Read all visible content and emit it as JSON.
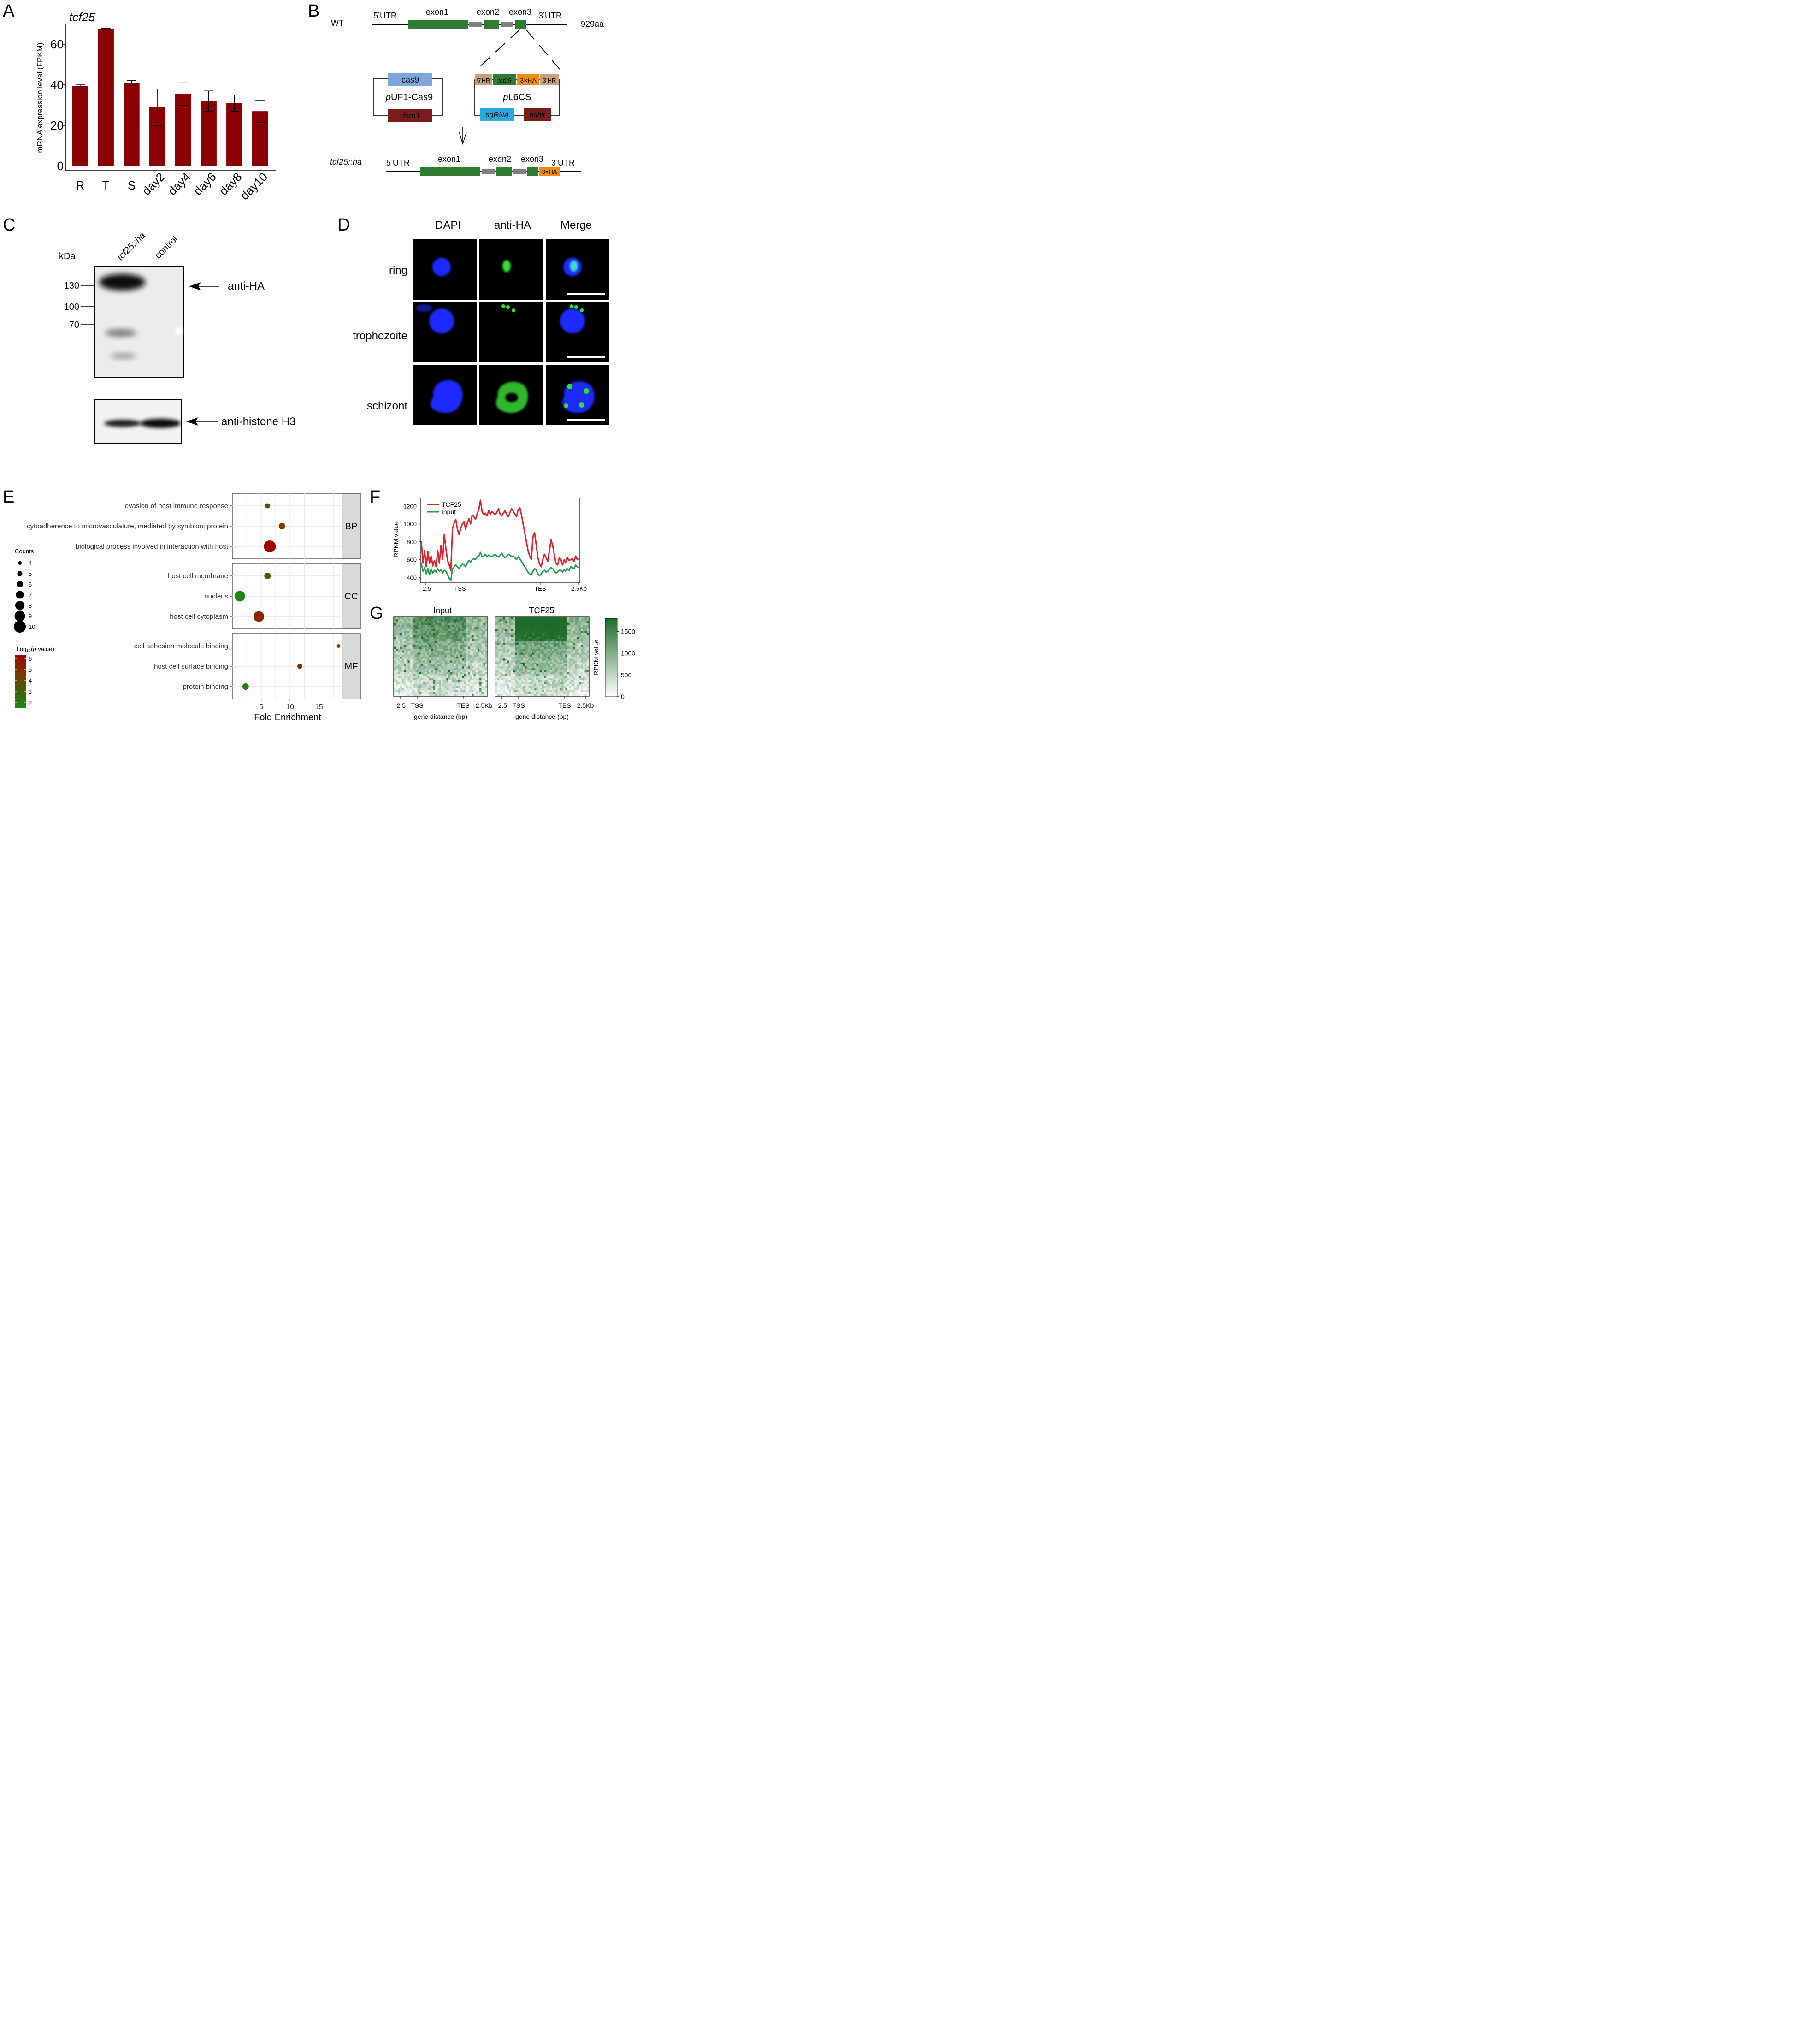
{
  "panels": {
    "A": {
      "letter": "A",
      "title": "tcf25",
      "ylabel": "mRNA expression level (FPKM)"
    },
    "B": {
      "letter": "B",
      "wt_label": "WT",
      "aa_label": "929aa",
      "utr5": "5’UTR",
      "utr3": "3’UTR",
      "exon1": "exon1",
      "exon2": "exon2",
      "exon3": "exon3",
      "cas9": "cas9",
      "dsm1": "dsm1",
      "pUF1_italic": "p",
      "pUF1_rest": "UF1-Cas9",
      "hr5": "5’HR",
      "tcf25_box": "tcf25",
      "ha_box": "3×HA",
      "hr3": "3’HR",
      "pL6CS_italic": "p",
      "pL6CS_rest": "L6CS",
      "sgrna": "sgRNA",
      "hdhfr": "hdhfr",
      "ko_label": "tcf25::ha",
      "ha_small": "3×HA"
    },
    "C": {
      "letter": "C",
      "kda": "kDa",
      "lane1": "tcf25::ha",
      "lane2": "control",
      "marker_130": "130",
      "marker_100": "100",
      "marker_70": "70",
      "anti_ha": "anti-HA",
      "anti_h3": "anti-histone H3"
    },
    "D": {
      "letter": "D",
      "col1": "DAPI",
      "col2": "anti-HA",
      "col3": "Merge",
      "row1": "ring",
      "row2": "trophozoite",
      "row3": "schizont"
    },
    "E": {
      "letter": "E",
      "counts_title": "Counts",
      "counts": [
        "4",
        "5",
        "6",
        "7",
        "8",
        "9",
        "10"
      ],
      "pval_title_prefix": "−Log₁₀(",
      "pval_title_italic": "p",
      "pval_title_suffix": " value)",
      "pval_ticks": [
        "6",
        "5",
        "4",
        "3",
        "2"
      ],
      "xlabel": "Fold Enrichment",
      "xticks": [
        "5",
        "10",
        "15"
      ],
      "facets": [
        "BP",
        "CC",
        "MF"
      ]
    },
    "F": {
      "letter": "F",
      "ylabel": "RPKM value",
      "legend_tcf25": "TCF25",
      "legend_input": "Input",
      "xticks": [
        "-2.5",
        "TSS",
        "TES",
        "2.5Kb"
      ],
      "yticks": [
        "1200",
        "1000",
        "800",
        "600",
        "400"
      ]
    },
    "G": {
      "letter": "G",
      "title_input": "Input",
      "title_tcf25": "TCF25",
      "xticks": [
        "-2.5",
        "TSS",
        "TES",
        "2.5Kb"
      ],
      "xlabel": "gene distance (bp)",
      "colorbar_label": "RPKM value",
      "colorbar_ticks": [
        "1500",
        "1000",
        "500",
        "0"
      ]
    }
  },
  "colors": {
    "bar": "#8b0000",
    "exon": "#2e7d32",
    "intron": "#808080",
    "cas9": "#7ea6dc",
    "dsm1": "#7b1c1c",
    "hr": "#c9a27a",
    "ha": "#f28c0f",
    "sgrna": "#29a9e0",
    "tcf25_line": "#e0202a",
    "input_line": "#20a04a",
    "heat_dark": "#1e6b2a"
  },
  "chart_data": [
    {
      "type": "bar",
      "panel": "A",
      "title": "tcf25",
      "xlabel": "",
      "ylabel": "mRNA expression level (FPKM)",
      "categories": [
        "R",
        "T",
        "S",
        "day2",
        "day4",
        "day6",
        "day8",
        "day10"
      ],
      "values": [
        39.5,
        67.5,
        41,
        29,
        35.5,
        32,
        31,
        27
      ],
      "errors": [
        0.5,
        0.3,
        1.2,
        9,
        5.5,
        5,
        4,
        5.5
      ],
      "ylim": [
        0,
        70
      ],
      "yticks": [
        0,
        20,
        40,
        60
      ],
      "grid": false
    },
    {
      "type": "scatter",
      "panel": "E",
      "xlabel": "Fold Enrichment",
      "xlim": [
        0,
        19
      ],
      "xticks": [
        5,
        10,
        15
      ],
      "grid": true,
      "facets": [
        {
          "name": "BP",
          "terms": [
            {
              "label": "evasion of host immune response",
              "x": 6.1,
              "count": 5,
              "neglog10p": 3.5
            },
            {
              "label": "cytoadherence to microvasculature, mediated by symbiont protein",
              "x": 8.6,
              "count": 6,
              "neglog10p": 4.5
            },
            {
              "label": "biological process involved in interaction with host",
              "x": 6.5,
              "count": 10,
              "neglog10p": 6.3
            }
          ]
        },
        {
          "name": "CC",
          "terms": [
            {
              "label": "host cell membrane",
              "x": 6.1,
              "count": 6,
              "neglog10p": 3.5
            },
            {
              "label": "nucleus",
              "x": 1.3,
              "count": 9,
              "neglog10p": 1.5
            },
            {
              "label": "host cell cytoplasm",
              "x": 4.6,
              "count": 9,
              "neglog10p": 5.2
            }
          ]
        },
        {
          "name": "MF",
          "terms": [
            {
              "label": "cell adhesion molecule binding",
              "x": 18.4,
              "count": 4,
              "neglog10p": 4.5
            },
            {
              "label": "host cell surface binding",
              "x": 11.7,
              "count": 5,
              "neglog10p": 4.8
            },
            {
              "label": "protein binding",
              "x": 2.3,
              "count": 6,
              "neglog10p": 1.8
            }
          ]
        }
      ]
    },
    {
      "type": "line",
      "panel": "F",
      "ylabel": "RPKM value",
      "ylim": [
        350,
        1280
      ],
      "yticks": [
        400,
        600,
        800,
        1000,
        1200
      ],
      "xticks": [
        "-2.5",
        "TSS",
        "TES",
        "2.5Kb"
      ],
      "legend": "top-left",
      "series": [
        {
          "name": "TCF25",
          "values": [
            810,
            560,
            700,
            520,
            690,
            560,
            640,
            530,
            590,
            520,
            700,
            560,
            760,
            600,
            880,
            720,
            590,
            540,
            480,
            950,
            1010,
            1050,
            940,
            880,
            950,
            1000,
            1020,
            940,
            1010,
            1060,
            1000,
            1100,
            1080,
            1050,
            1110,
            1160,
            1265,
            1140,
            1100,
            1120,
            1090,
            1150,
            1110,
            1140,
            1120,
            1100,
            1130,
            1170,
            1110,
            1090,
            1120,
            1150,
            1100,
            1080,
            1130,
            1170,
            1140,
            1110,
            1080,
            1160,
            1180,
            1100,
            1000,
            900,
            800,
            700,
            640,
            600,
            860,
            900,
            760,
            620,
            550,
            520,
            600,
            660,
            620,
            580,
            700,
            820,
            760,
            650,
            560,
            540,
            620,
            600,
            540,
            600,
            560,
            620,
            590,
            600,
            610,
            580,
            640,
            600,
            610
          ]
        },
        {
          "name": "Input",
          "values": [
            560,
            470,
            510,
            440,
            500,
            430,
            490,
            450,
            480,
            460,
            500,
            470,
            490,
            450,
            480,
            470,
            430,
            390,
            370,
            500,
            520,
            540,
            520,
            500,
            530,
            550,
            540,
            520,
            560,
            590,
            570,
            600,
            610,
            600,
            630,
            640,
            680,
            630,
            640,
            660,
            630,
            650,
            640,
            630,
            650,
            660,
            640,
            630,
            650,
            670,
            640,
            620,
            640,
            660,
            650,
            630,
            640,
            620,
            600,
            630,
            610,
            580,
            550,
            520,
            490,
            460,
            440,
            430,
            470,
            500,
            480,
            440,
            420,
            440,
            470,
            480,
            460,
            470,
            490,
            510,
            500,
            470,
            450,
            460,
            480,
            480,
            460,
            490,
            470,
            500,
            480,
            520,
            510,
            500,
            540,
            520,
            510
          ]
        }
      ]
    },
    {
      "type": "heatmap",
      "panel": "G",
      "panels": [
        "Input",
        "TCF25"
      ],
      "xticks": [
        "-2.5",
        "TSS",
        "TES",
        "2.5Kb"
      ],
      "xlabel": "gene distance (bp)",
      "colorbar": {
        "label": "RPKM value",
        "ticks": [
          0,
          500,
          1000,
          1500
        ],
        "range": [
          0,
          1800
        ]
      }
    }
  ]
}
